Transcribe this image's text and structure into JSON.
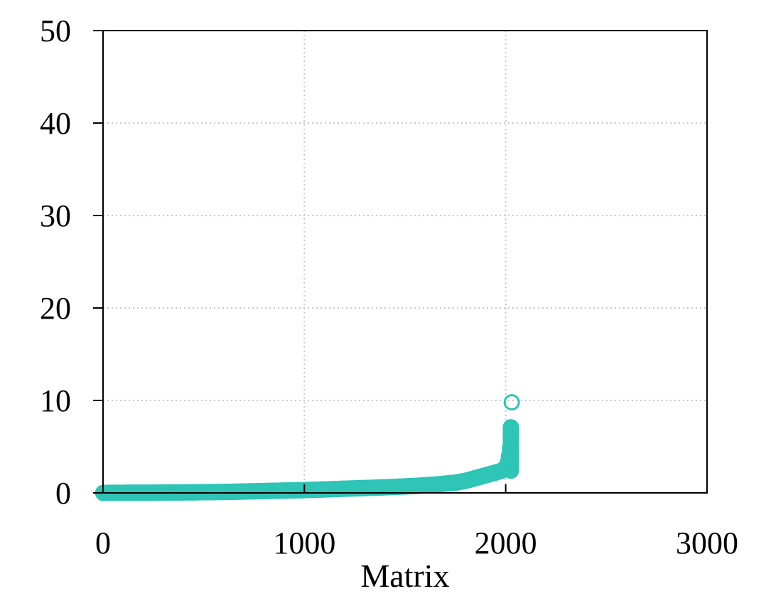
{
  "chart_data": {
    "type": "scatter",
    "title": "",
    "xlabel": "Matrix",
    "ylabel": "",
    "xlim": [
      0,
      3000
    ],
    "ylim": [
      0,
      50
    ],
    "xticks": [
      0,
      1000,
      2000,
      3000
    ],
    "yticks": [
      0,
      10,
      20,
      30,
      40,
      50
    ],
    "xtick_labels": [
      "0",
      "1000",
      "2000",
      "3000"
    ],
    "ytick_labels": [
      "0",
      "10",
      "20",
      "30",
      "40",
      "50"
    ],
    "grid": true,
    "grid_style": "dotted",
    "legend": "none",
    "marker": "open-circle",
    "series": [
      {
        "color": "#2ec4b6",
        "x_start": 1,
        "x_end": 2030,
        "sorted_ascending": true,
        "curve": [
          [
            1,
            0.0
          ],
          [
            200,
            0.02
          ],
          [
            400,
            0.05
          ],
          [
            600,
            0.1
          ],
          [
            800,
            0.2
          ],
          [
            1000,
            0.3
          ],
          [
            1200,
            0.45
          ],
          [
            1400,
            0.6
          ],
          [
            1550,
            0.75
          ],
          [
            1650,
            0.9
          ],
          [
            1750,
            1.1
          ],
          [
            1800,
            1.3
          ],
          [
            1850,
            1.6
          ],
          [
            1900,
            1.9
          ],
          [
            1950,
            2.2
          ],
          [
            1980,
            2.4
          ],
          [
            2000,
            2.7
          ],
          [
            2010,
            3.2
          ],
          [
            2015,
            3.8
          ],
          [
            2020,
            4.6
          ],
          [
            2025,
            5.6
          ],
          [
            2028,
            6.6
          ],
          [
            2029,
            7.1
          ]
        ],
        "outliers": [
          {
            "x": 2030,
            "y": 9.8
          }
        ]
      }
    ]
  }
}
